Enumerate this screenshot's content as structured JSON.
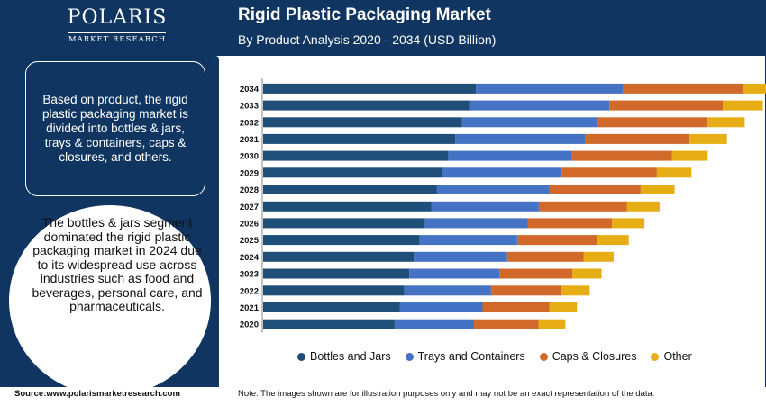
{
  "header": {
    "logo_name": "POLARIS",
    "logo_sub": "MARKET RESEARCH",
    "title": "Rigid Plastic Packaging Market",
    "subtitle": "By Product Analysis 2020 - 2034 (USD Billion)"
  },
  "panel": {
    "info_text": "Based on product, the rigid plastic packaging market is divided into bottles & jars, trays & containers, caps & closures, and others.",
    "highlight_text": "The bottles & jars segment dominated the rigid plastic packaging market in 2024 due to its widespread use across industries such as food and beverages, personal care, and pharmaceuticals."
  },
  "footer": {
    "source": "Source:www.polarismarketresearch.com",
    "note": "Note: The images shown are for illustration purposes only and may not be an exact representation of the data."
  },
  "colors": {
    "navy": "#0f3560",
    "bottles": "#1f4e79",
    "trays": "#4472c4",
    "caps": "#d0692a",
    "other": "#e6ad14"
  },
  "chart_data": {
    "type": "bar",
    "orientation": "horizontal",
    "stacked": true,
    "categories": [
      "2034",
      "2033",
      "2032",
      "2031",
      "2030",
      "2029",
      "2028",
      "2027",
      "2026",
      "2025",
      "2024",
      "2023",
      "2022",
      "2021",
      "2020"
    ],
    "series": [
      {
        "name": "Bottles and Jars",
        "color": "#1f4e79",
        "values": [
          55.2,
          53.4,
          51.6,
          49.8,
          48.0,
          46.5,
          45.0,
          43.6,
          42.0,
          40.6,
          39.1,
          37.9,
          36.6,
          35.4,
          34.1
        ]
      },
      {
        "name": "Trays and Containers",
        "color": "#4472c4",
        "values": [
          38.2,
          36.4,
          35.2,
          33.8,
          32.1,
          30.9,
          29.3,
          27.9,
          26.7,
          25.3,
          24.2,
          23.4,
          22.5,
          21.5,
          20.6
        ]
      },
      {
        "name": "Caps & Closures",
        "color": "#d0692a",
        "values": [
          31.0,
          29.4,
          28.3,
          27.0,
          25.9,
          24.7,
          23.6,
          22.8,
          21.8,
          20.8,
          19.8,
          18.9,
          18.2,
          17.3,
          16.7
        ]
      },
      {
        "name": "Other",
        "color": "#e6ad14",
        "values": [
          10.7,
          10.4,
          9.8,
          9.7,
          9.3,
          9.0,
          8.8,
          8.5,
          8.4,
          8.1,
          7.8,
          7.6,
          7.4,
          7.2,
          7.0
        ]
      }
    ],
    "legend_position": "bottom",
    "grid": false
  }
}
